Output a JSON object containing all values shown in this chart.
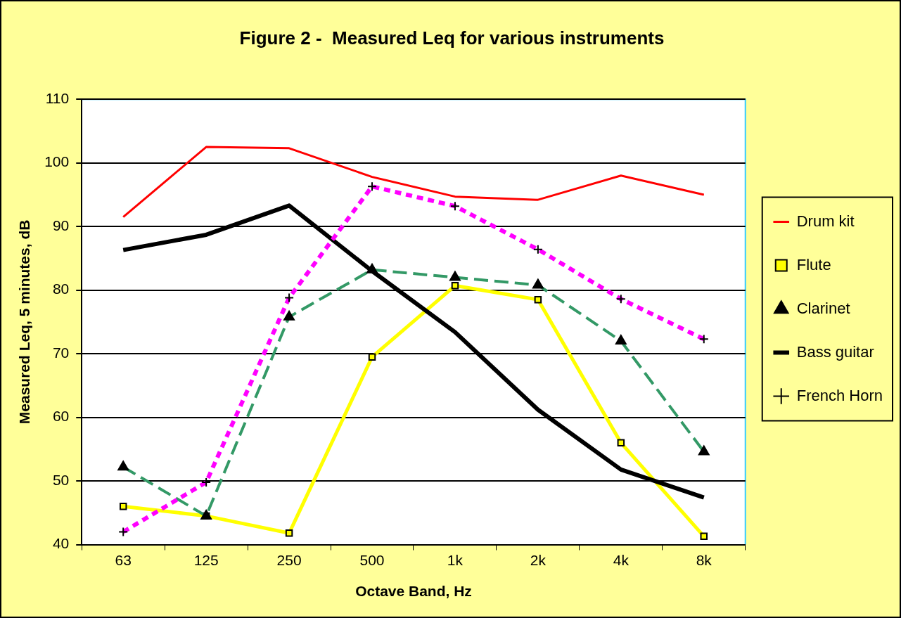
{
  "chart_data": {
    "type": "line",
    "title": "Figure 2 -  Measured Leq for various instruments",
    "xlabel": "Octave Band, Hz",
    "ylabel": "Measured Leq, 5 minutes, dB",
    "categories": [
      "63",
      "125",
      "250",
      "500",
      "1k",
      "2k",
      "4k",
      "8k"
    ],
    "ylim": [
      40,
      110
    ],
    "yticks": [
      40,
      50,
      60,
      70,
      80,
      90,
      100,
      110
    ],
    "grid": "y",
    "legend": "right",
    "series": [
      {
        "name": "Drum kit",
        "color": "#ff0000",
        "marker": "none",
        "line_style": "solid",
        "values": [
          91.5,
          102.5,
          102.3,
          97.8,
          94.7,
          94.2,
          98,
          95
        ]
      },
      {
        "name": "Flute",
        "color": "#ffff00",
        "marker": "square",
        "line_style": "solid",
        "values": [
          46,
          44.5,
          41.8,
          69.5,
          80.7,
          78.5,
          56,
          41.3
        ]
      },
      {
        "name": "Clarinet",
        "color": "#339966",
        "marker": "triangle",
        "line_style": "dashed",
        "values": [
          52.2,
          44.5,
          75.8,
          83.2,
          82,
          80.8,
          72,
          54.6
        ]
      },
      {
        "name": "Bass guitar",
        "color": "#000000",
        "marker": "none",
        "line_style": "solid",
        "values": [
          86.3,
          88.7,
          93.3,
          83,
          73.4,
          61.2,
          51.8,
          47.4
        ]
      },
      {
        "name": "French Horn",
        "color": "#ff00ff",
        "marker": "cross",
        "line_style": "dotted",
        "values": [
          42,
          49.8,
          78.8,
          96.3,
          93.2,
          86.4,
          78.6,
          72.3
        ]
      }
    ]
  }
}
